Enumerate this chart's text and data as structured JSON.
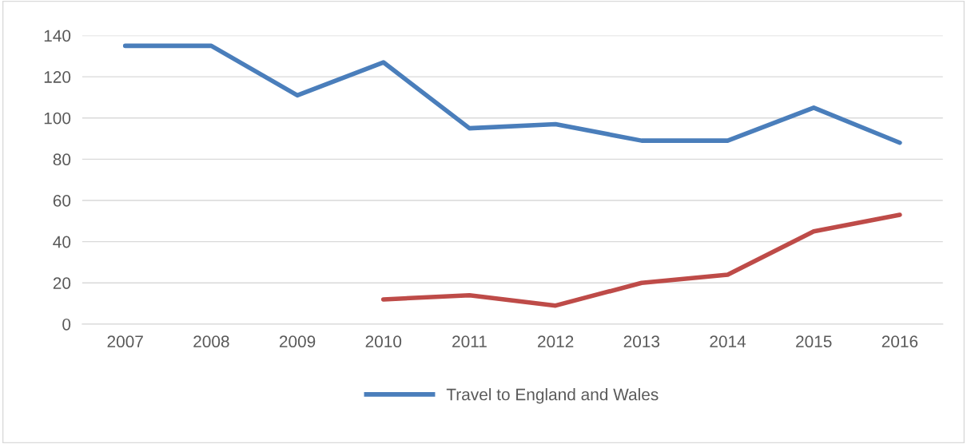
{
  "chart_data": {
    "type": "line",
    "categories": [
      "2007",
      "2008",
      "2009",
      "2010",
      "2011",
      "2012",
      "2013",
      "2014",
      "2015",
      "2016"
    ],
    "series": [
      {
        "name": "Travel to England and Wales",
        "color": "#4a7ebb",
        "values": [
          135,
          135,
          111,
          127,
          95,
          97,
          89,
          89,
          105,
          88
        ]
      },
      {
        "color": "#be4b48",
        "values": [
          null,
          null,
          null,
          12,
          14,
          9,
          20,
          24,
          45,
          53
        ]
      }
    ],
    "ylim": [
      0,
      140
    ],
    "yticks": [
      0,
      20,
      40,
      60,
      80,
      100,
      120,
      140
    ],
    "grid": "y",
    "legend": "bottom",
    "marker": "none",
    "line_style": "solid"
  }
}
